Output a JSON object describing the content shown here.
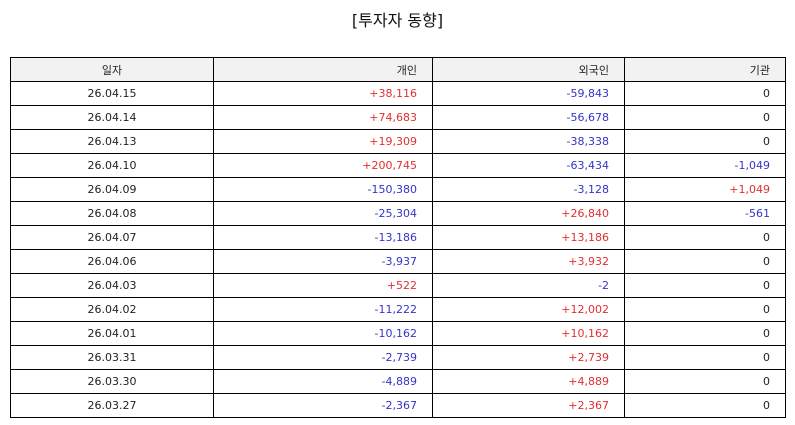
{
  "title": "[투자자 동향]",
  "colors": {
    "positive": "#e03030",
    "negative": "#3434c8",
    "neutral": "#222222",
    "header_bg": "#f2f2f2"
  },
  "table": {
    "columns": [
      "일자",
      "개인",
      "외국인",
      "기관"
    ],
    "rows": [
      {
        "date": "26.04.15",
        "individual": "+38,116",
        "foreign": "-59,843",
        "institution": "0"
      },
      {
        "date": "26.04.14",
        "individual": "+74,683",
        "foreign": "-56,678",
        "institution": "0"
      },
      {
        "date": "26.04.13",
        "individual": "+19,309",
        "foreign": "-38,338",
        "institution": "0"
      },
      {
        "date": "26.04.10",
        "individual": "+200,745",
        "foreign": "-63,434",
        "institution": "-1,049"
      },
      {
        "date": "26.04.09",
        "individual": "-150,380",
        "foreign": "-3,128",
        "institution": "+1,049"
      },
      {
        "date": "26.04.08",
        "individual": "-25,304",
        "foreign": "+26,840",
        "institution": "-561"
      },
      {
        "date": "26.04.07",
        "individual": "-13,186",
        "foreign": "+13,186",
        "institution": "0"
      },
      {
        "date": "26.04.06",
        "individual": "-3,937",
        "foreign": "+3,932",
        "institution": "0"
      },
      {
        "date": "26.04.03",
        "individual": "+522",
        "foreign": "-2",
        "institution": "0"
      },
      {
        "date": "26.04.02",
        "individual": "-11,222",
        "foreign": "+12,002",
        "institution": "0"
      },
      {
        "date": "26.04.01",
        "individual": "-10,162",
        "foreign": "+10,162",
        "institution": "0"
      },
      {
        "date": "26.03.31",
        "individual": "-2,739",
        "foreign": "+2,739",
        "institution": "0"
      },
      {
        "date": "26.03.30",
        "individual": "-4,889",
        "foreign": "+4,889",
        "institution": "0"
      },
      {
        "date": "26.03.27",
        "individual": "-2,367",
        "foreign": "+2,367",
        "institution": "0"
      }
    ]
  }
}
